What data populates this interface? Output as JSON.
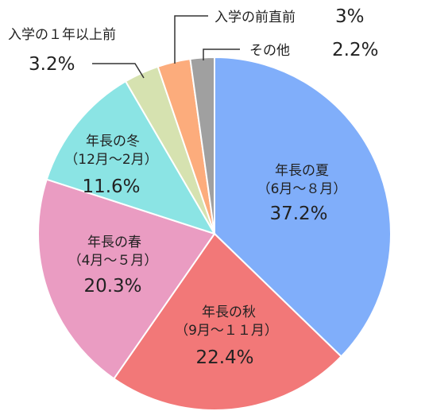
{
  "chart_data": {
    "type": "pie",
    "title": "",
    "start_angle_deg": 0,
    "direction": "clockwise",
    "slices": [
      {
        "label": "年長の夏",
        "sub": "（6月～８月）",
        "value": 37.2,
        "display": "37.2%",
        "color": "#80aefa"
      },
      {
        "label": "年長の秋",
        "sub": "（9月～１１月）",
        "value": 22.4,
        "display": "22.4%",
        "color": "#f27878"
      },
      {
        "label": "年長の春",
        "sub": "（4月～５月）",
        "value": 20.3,
        "display": "20.3%",
        "color": "#ea9cc2"
      },
      {
        "label": "年長の冬",
        "sub": "（12月～2月）",
        "value": 11.6,
        "display": "11.6%",
        "color": "#8be4e4"
      },
      {
        "label": "入学の１年以上前",
        "sub": "",
        "value": 3.2,
        "display": "3.2%",
        "color": "#d6e2b0"
      },
      {
        "label": "入学の前直前",
        "sub": "",
        "value": 3.0,
        "display": "3%",
        "color": "#fcac7c"
      },
      {
        "label": "その他",
        "sub": "",
        "value": 2.2,
        "display": "2.2%",
        "color": "#a0a0a0"
      }
    ]
  }
}
